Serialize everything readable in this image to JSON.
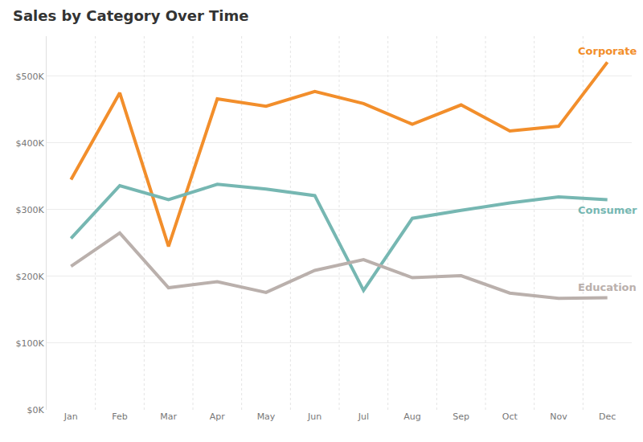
{
  "chart_data": {
    "type": "line",
    "title": "Sales by Category Over Time",
    "categories": [
      "Jan",
      "Feb",
      "Mar",
      "Apr",
      "May",
      "Jun",
      "Jul",
      "Aug",
      "Sep",
      "Oct",
      "Nov",
      "Dec"
    ],
    "series": [
      {
        "name": "Corporate",
        "color": "#f28e2b",
        "values": [
          345000,
          475000,
          245000,
          466000,
          455000,
          477000,
          459000,
          428000,
          457000,
          418000,
          425000,
          521000
        ]
      },
      {
        "name": "Consumer",
        "color": "#76b7b2",
        "values": [
          257000,
          336000,
          315000,
          338000,
          331000,
          321000,
          179000,
          287000,
          299000,
          310000,
          319000,
          315000
        ]
      },
      {
        "name": "Education",
        "color": "#bab0ac",
        "values": [
          215000,
          265000,
          183000,
          192000,
          176000,
          209000,
          225000,
          198000,
          201000,
          175000,
          167000,
          168000
        ]
      }
    ],
    "ylim": [
      0,
      560000
    ],
    "yticks": [
      {
        "value": 0,
        "label": "$0K"
      },
      {
        "value": 100000,
        "label": "$100K"
      },
      {
        "value": 200000,
        "label": "$200K"
      },
      {
        "value": 300000,
        "label": "$300K"
      },
      {
        "value": 400000,
        "label": "$400K"
      },
      {
        "value": 500000,
        "label": "$500K"
      }
    ],
    "grid": true
  }
}
